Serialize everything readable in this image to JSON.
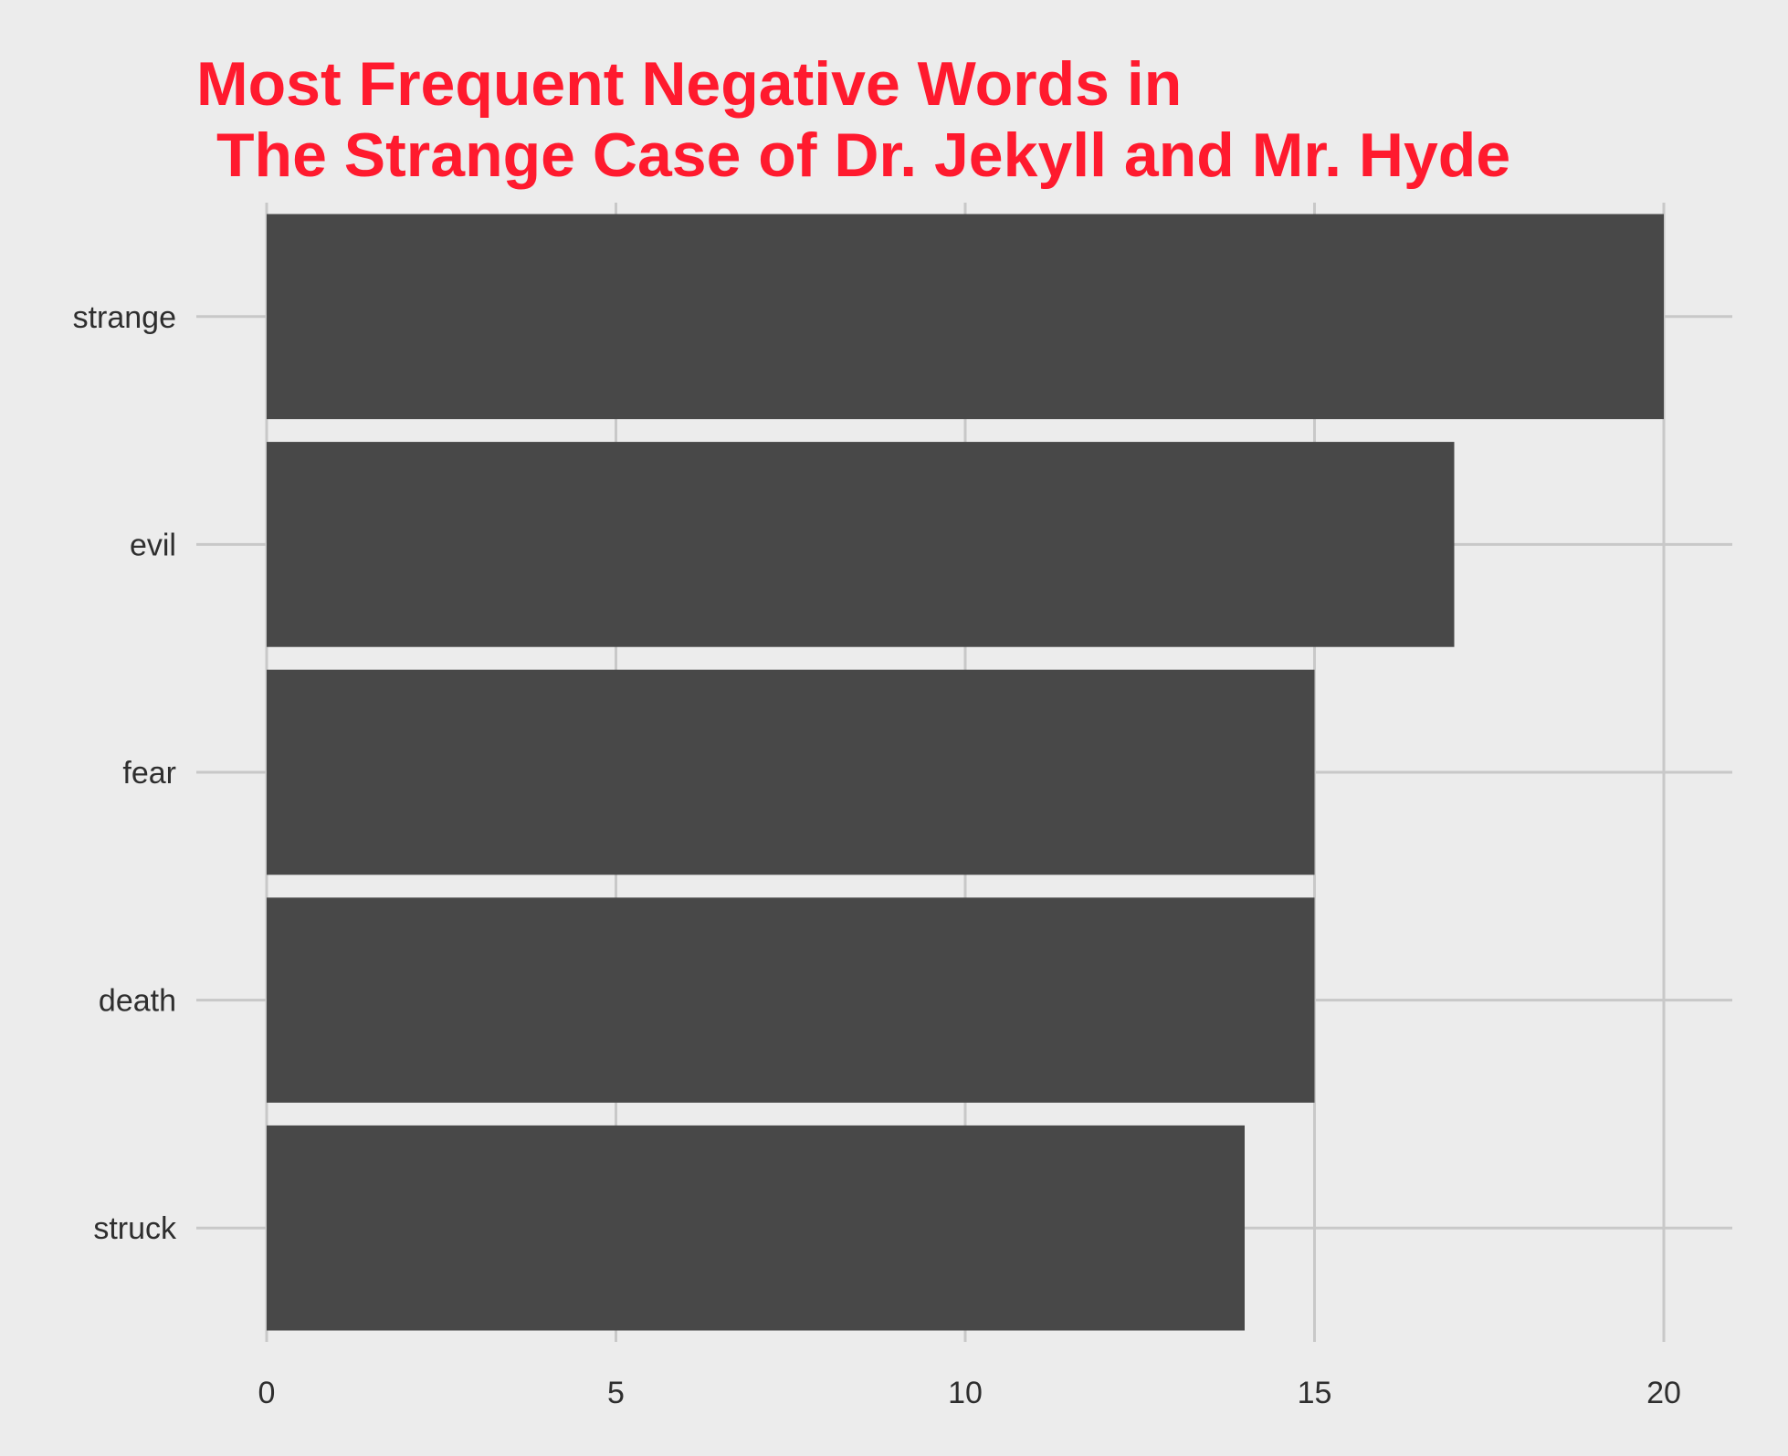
{
  "chart_data": {
    "type": "bar",
    "orientation": "horizontal",
    "title_lines": [
      "Most Frequent Negative Words in",
      "The Strange Case of Dr. Jekyll and Mr. Hyde"
    ],
    "xlabel": "",
    "ylabel": "",
    "categories": [
      "strange",
      "evil",
      "fear",
      "death",
      "struck"
    ],
    "values": [
      20,
      17,
      15,
      15,
      14
    ],
    "xlim": [
      0,
      21
    ],
    "x_ticks": [
      0,
      5,
      10,
      15,
      20
    ],
    "grid": true,
    "legend": "none",
    "colors": {
      "background": "#ececec",
      "bar": "#484848",
      "grid": "#c8c8c8",
      "title": "#ff1a2e",
      "tick_text": "#2e2e2e"
    }
  }
}
